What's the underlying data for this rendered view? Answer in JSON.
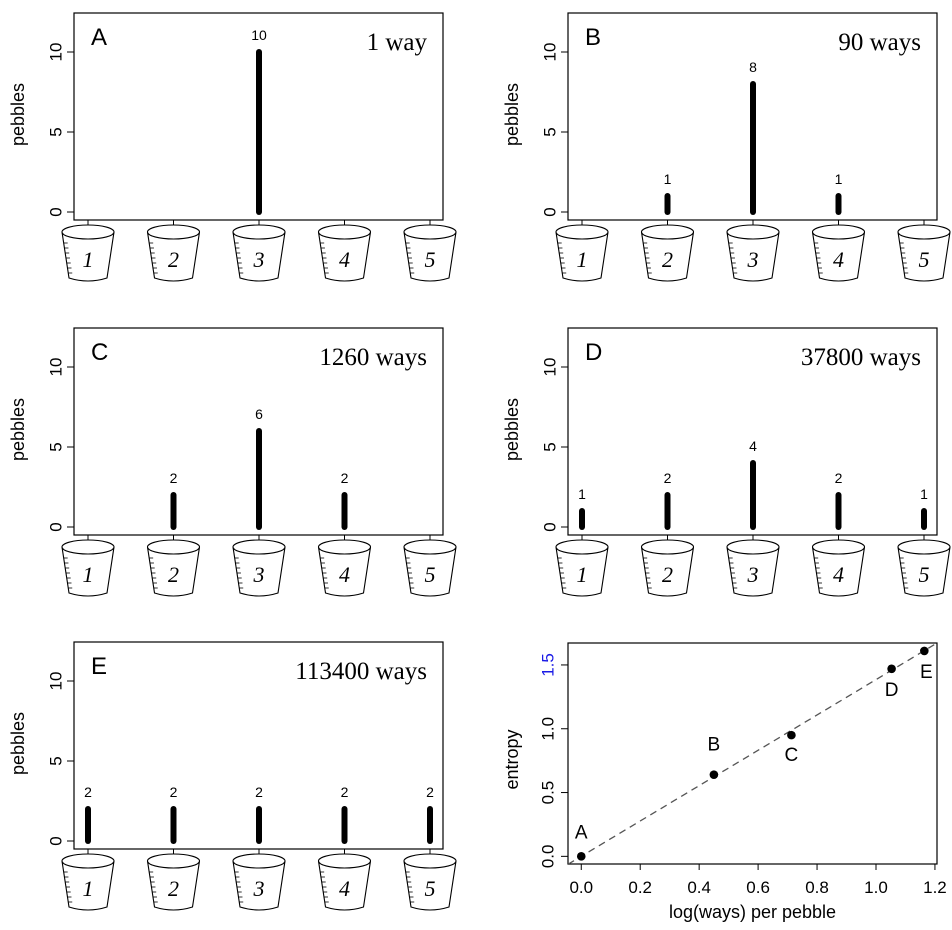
{
  "chart_data": [
    {
      "type": "bar",
      "panel": "A",
      "annotation": "1 way",
      "categories": [
        "1",
        "2",
        "3",
        "4",
        "5"
      ],
      "values": [
        0,
        0,
        10,
        0,
        0
      ],
      "ylabel": "pebbles",
      "yticks": [
        "0",
        "5",
        "10"
      ],
      "ylim": [
        -0.5,
        12.4
      ],
      "xlabel": ""
    },
    {
      "type": "bar",
      "panel": "B",
      "annotation": "90 ways",
      "categories": [
        "1",
        "2",
        "3",
        "4",
        "5"
      ],
      "values": [
        0,
        1,
        8,
        1,
        0
      ],
      "ylabel": "pebbles",
      "yticks": [
        "0",
        "5",
        "10"
      ],
      "ylim": [
        -0.5,
        12.4
      ],
      "xlabel": ""
    },
    {
      "type": "bar",
      "panel": "C",
      "annotation": "1260 ways",
      "categories": [
        "1",
        "2",
        "3",
        "4",
        "5"
      ],
      "values": [
        0,
        2,
        6,
        2,
        0
      ],
      "ylabel": "pebbles",
      "yticks": [
        "0",
        "5",
        "10"
      ],
      "ylim": [
        -0.5,
        12.4
      ],
      "xlabel": ""
    },
    {
      "type": "bar",
      "panel": "D",
      "annotation": "37800 ways",
      "categories": [
        "1",
        "2",
        "3",
        "4",
        "5"
      ],
      "values": [
        1,
        2,
        4,
        2,
        1
      ],
      "ylabel": "pebbles",
      "yticks": [
        "0",
        "5",
        "10"
      ],
      "ylim": [
        -0.5,
        12.4
      ],
      "xlabel": ""
    },
    {
      "type": "bar",
      "panel": "E",
      "annotation": "113400 ways",
      "categories": [
        "1",
        "2",
        "3",
        "4",
        "5"
      ],
      "values": [
        2,
        2,
        2,
        2,
        2
      ],
      "ylabel": "pebbles",
      "yticks": [
        "0",
        "5",
        "10"
      ],
      "ylim": [
        -0.5,
        12.4
      ],
      "xlabel": ""
    },
    {
      "type": "scatter",
      "panel": "F",
      "xlabel": "log(ways) per pebble",
      "ylabel": "entropy",
      "xticks": [
        "0.0",
        "0.2",
        "0.4",
        "0.6",
        "0.8",
        "1.0",
        "1.2"
      ],
      "yticks": [
        "0.0",
        "0.5",
        "1.0",
        "1.5"
      ],
      "highlight_tick": "1.5",
      "highlight_color": "#1a1ae6",
      "xlim": [
        -0.045,
        1.207
      ],
      "ylim": [
        -0.06,
        1.672
      ],
      "points": [
        {
          "label": "A",
          "x": 0.0,
          "y": 0.0
        },
        {
          "label": "B",
          "x": 0.45,
          "y": 0.64
        },
        {
          "label": "C",
          "x": 0.713,
          "y": 0.95
        },
        {
          "label": "D",
          "x": 1.053,
          "y": 1.47
        },
        {
          "label": "E",
          "x": 1.164,
          "y": 1.61
        }
      ],
      "reference_line": {
        "style": "dashed",
        "intercept": 0,
        "slope": 1.385,
        "color": "#555555"
      }
    }
  ]
}
